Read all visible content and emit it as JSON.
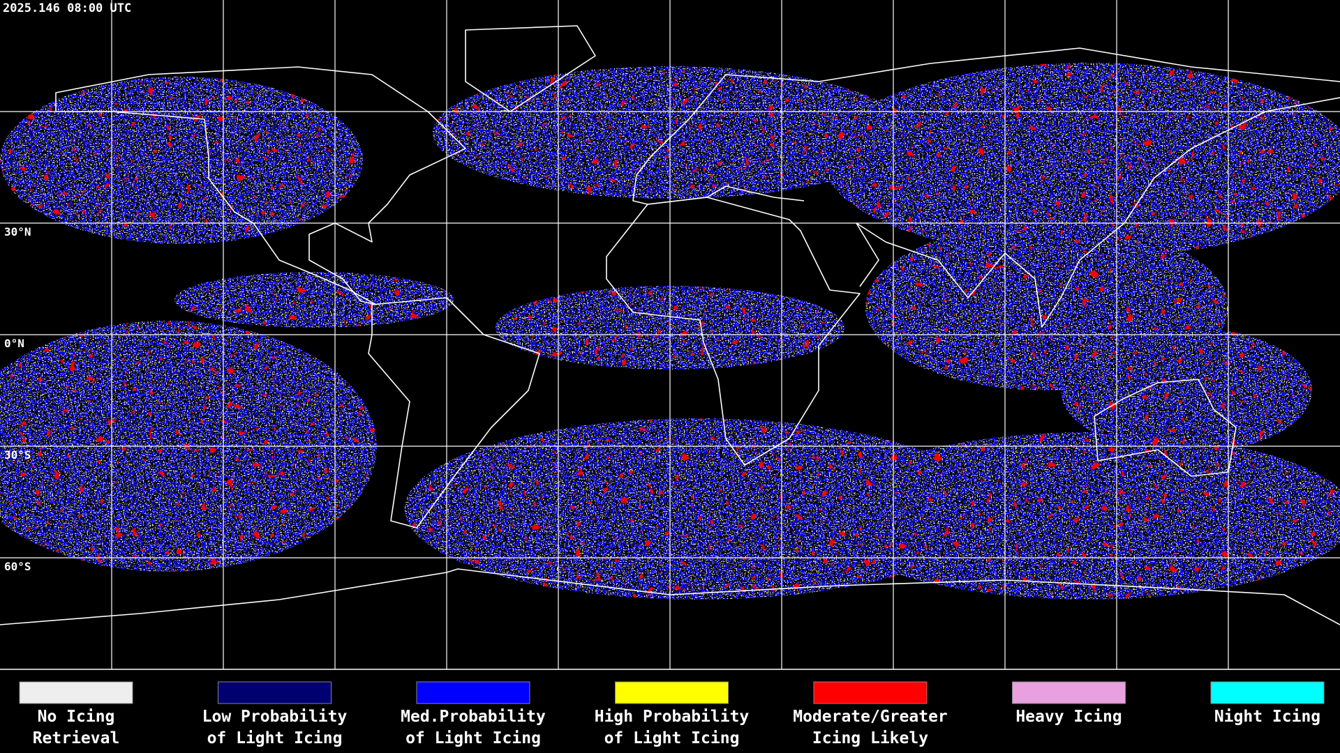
{
  "timestamp": "2025.146 08:00 UTC",
  "latitude_labels": [
    "30°N",
    "0°N",
    "30°S",
    "60°S"
  ],
  "legend": [
    {
      "label": [
        "No Icing",
        "Retrieval"
      ],
      "color": "#eeeeee"
    },
    {
      "label": [
        "Low Probability",
        "of Light Icing"
      ],
      "color": "#000070"
    },
    {
      "label": [
        "Med.Probability",
        "of Light Icing"
      ],
      "color": "#0000ff"
    },
    {
      "label": [
        "High Probability",
        "of Light Icing"
      ],
      "color": "#ffff00"
    },
    {
      "label": [
        "Moderate/Greater",
        "Icing Likely"
      ],
      "color": "#ff0000"
    },
    {
      "label": [
        "Heavy Icing"
      ],
      "color": "#e8a0e0"
    },
    {
      "label": [
        "Night Icing"
      ],
      "color": "#00ffff"
    }
  ]
}
